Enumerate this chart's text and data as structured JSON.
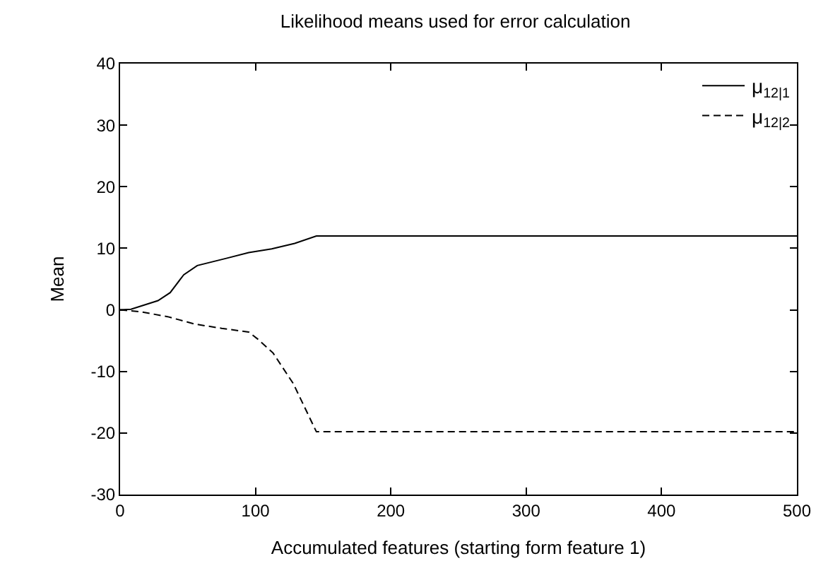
{
  "chart_data": {
    "type": "line",
    "title": "Likelihood means used for error calculation",
    "xlabel": "Accumulated features (starting form feature 1)",
    "ylabel": "Mean",
    "xlim": [
      0,
      500
    ],
    "xticks": [
      0,
      100,
      200,
      300,
      400,
      500
    ],
    "ylim": [
      -30,
      40
    ],
    "yticks": [
      -30,
      -20,
      -10,
      0,
      10,
      20,
      30,
      40
    ],
    "legend": "top right",
    "marker": "none",
    "series": [
      {
        "name": "μ$_{12|1}$",
        "color": "#000000",
        "line_style": "solid",
        "x": [
          0,
          8,
          28,
          37,
          47,
          57,
          79,
          95,
          112,
          129,
          145,
          200,
          300,
          400,
          500
        ],
        "values": [
          0,
          0.1,
          1.5,
          2.8,
          5.7,
          7.2,
          8.4,
          9.3,
          9.9,
          10.8,
          12,
          12,
          12,
          12,
          12
        ]
      },
      {
        "name": "μ$_{12|2}$",
        "color": "#000000",
        "line_style": "dashed",
        "x": [
          0,
          15,
          35,
          55,
          75,
          95,
          102,
          113,
          128,
          145,
          200,
          300,
          400,
          500
        ],
        "values": [
          0,
          -0.3,
          -1.1,
          -2.3,
          -3,
          -3.6,
          -4.8,
          -7,
          -12,
          -19.8,
          -19.8,
          -19.8,
          -19.8,
          -19.8
        ]
      }
    ]
  }
}
